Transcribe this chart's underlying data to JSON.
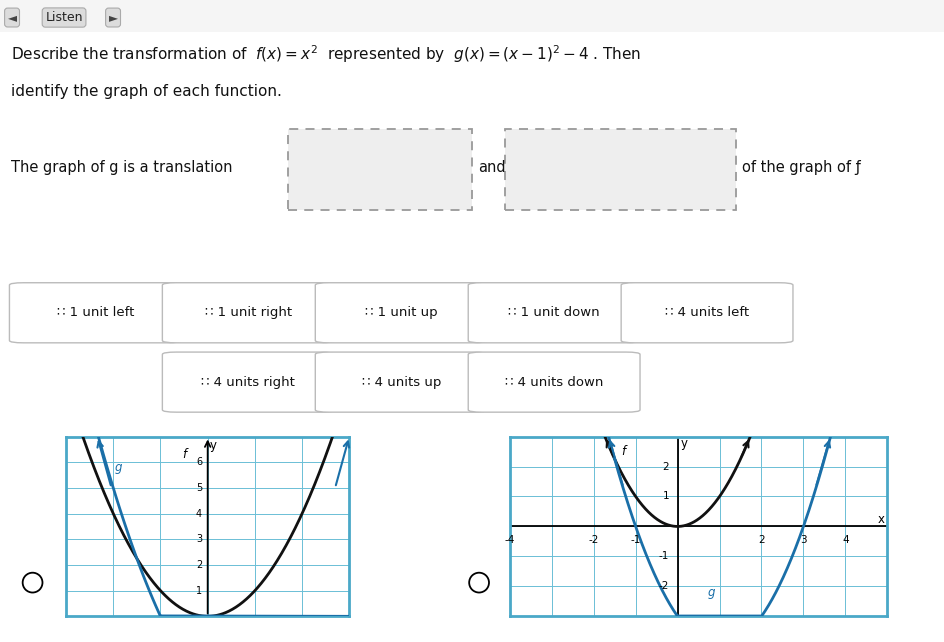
{
  "white_bg": "#ffffff",
  "light_gray_bg": "#e0e0e0",
  "button_bg": "#ffffff",
  "dashed_box_fill": "#eeeeee",
  "dashed_box_color": "#999999",
  "grid_color": "#6bbfd6",
  "grid_border_color": "#4aa8c8",
  "curve_color_f": "#111111",
  "curve_color_g": "#1a6fa8",
  "text_color": "#111111",
  "button_border": "#bbbbbb",
  "graph1_xlim": [
    -3,
    3
  ],
  "graph1_ylim": [
    0,
    7
  ],
  "graph2_xlim": [
    -4,
    5
  ],
  "graph2_ylim": [
    -3,
    3
  ],
  "buttons_row1": [
    "∷ 1 unit left",
    "∷ 1 unit right",
    "∷ 1 unit up",
    "∷ 1 unit down",
    "∷ 4 units left"
  ],
  "buttons_row2": [
    "∷ 4 units right",
    "∷ 4 units up",
    "∷ 4 units down"
  ]
}
